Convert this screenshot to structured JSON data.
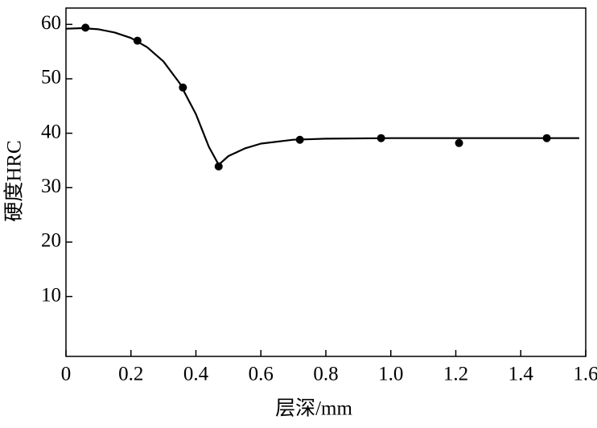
{
  "chart_data": {
    "type": "line",
    "xlabel": "层深/mm",
    "ylabel": "硬度HRC",
    "xlim": [
      0,
      1.6
    ],
    "ylim": [
      -1,
      63
    ],
    "xticks": [
      0,
      0.2,
      0.4,
      0.6,
      0.8,
      {
        "value": 1,
        "label": "1.0"
      },
      1.2,
      1.4,
      1.6
    ],
    "yticks": [
      10,
      20,
      30,
      40,
      50,
      60
    ],
    "color": "#000000",
    "points": {
      "x": [
        0.06,
        0.22,
        0.36,
        0.47,
        0.72,
        0.97,
        1.21,
        1.48
      ],
      "values": [
        59.4,
        57.0,
        48.4,
        33.9,
        38.8,
        39.1,
        38.2,
        39.1
      ]
    },
    "curve": {
      "x": [
        0,
        0.05,
        0.1,
        0.15,
        0.2,
        0.25,
        0.3,
        0.35,
        0.4,
        0.44,
        0.47,
        0.5,
        0.55,
        0.6,
        0.7,
        0.8,
        1.0,
        1.58
      ],
      "values": [
        59.2,
        59.3,
        59.1,
        58.5,
        57.5,
        55.8,
        53.2,
        49.2,
        43.5,
        37.5,
        34.2,
        35.8,
        37.2,
        38.1,
        38.8,
        39,
        39.1,
        39.1
      ]
    }
  }
}
